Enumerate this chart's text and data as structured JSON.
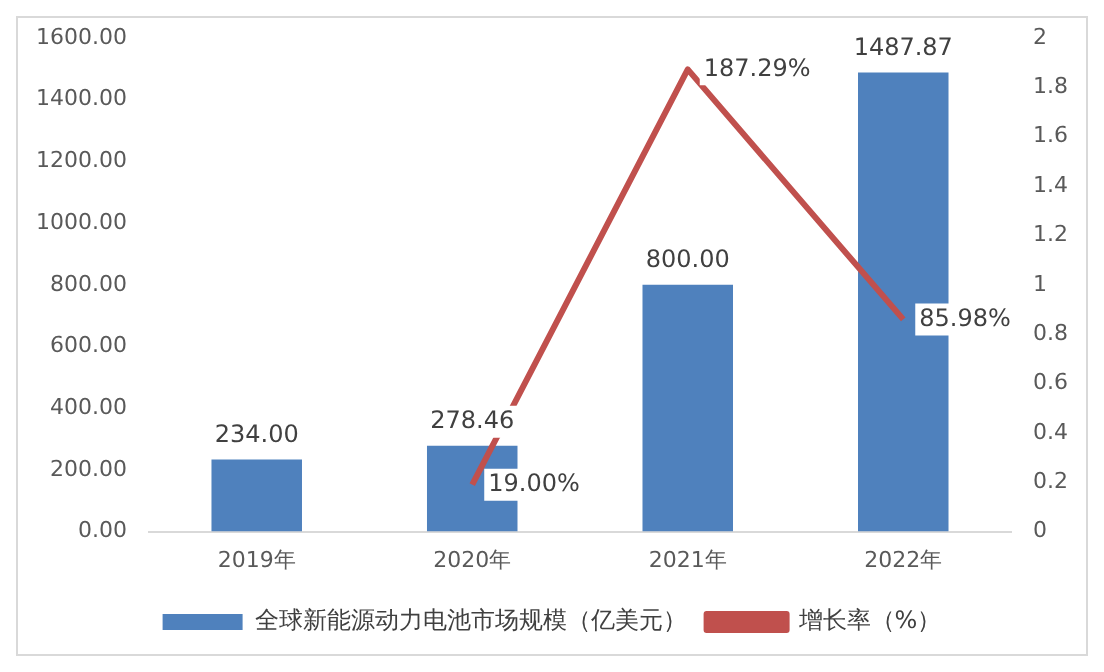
{
  "chart_data": {
    "type": "bar",
    "categories": [
      "2019年",
      "2020年",
      "2021年",
      "2022年"
    ],
    "series": [
      {
        "name": "全球新能源动力电池市场规模（亿美元）",
        "type": "bar",
        "color": "#4f81bd",
        "values": [
          234,
          278.46,
          800,
          1487.87
        ],
        "value_labels": [
          "234.00",
          "278.46",
          "800.00",
          "1487.87"
        ]
      },
      {
        "name": "增长率（%）",
        "type": "line",
        "axis": "y2",
        "color": "#c0504d",
        "values": [
          null,
          0.19,
          1.8729,
          0.8598
        ],
        "value_labels": [
          null,
          "19.00%",
          "187.29%",
          "85.98%"
        ]
      }
    ],
    "ylim": [
      0,
      1600
    ],
    "yticks": [
      {
        "value": 0,
        "label": "0.00"
      },
      {
        "value": 200,
        "label": "200.00"
      },
      {
        "value": 400,
        "label": "400.00"
      },
      {
        "value": 600,
        "label": "600.00"
      },
      {
        "value": 800,
        "label": "800.00"
      },
      {
        "value": 1000,
        "label": "1000.00"
      },
      {
        "value": 1200,
        "label": "1200.00"
      },
      {
        "value": 1400,
        "label": "1400.00"
      },
      {
        "value": 1600,
        "label": "1600.00"
      }
    ],
    "y2lim": [
      0,
      2
    ],
    "y2ticks": [
      0,
      0.2,
      0.4,
      0.6,
      0.8,
      1,
      1.2,
      1.4,
      1.6,
      1.8,
      2
    ],
    "legend": "bottom",
    "marker": "none",
    "line_style": "solid"
  }
}
